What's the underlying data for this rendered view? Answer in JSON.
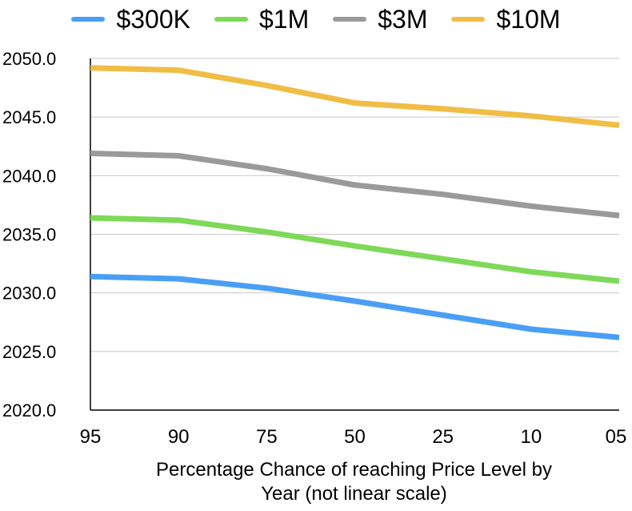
{
  "chart_data": {
    "type": "line",
    "title": "",
    "categories": [
      "95",
      "90",
      "75",
      "50",
      "25",
      "10",
      "05"
    ],
    "xlabel": [
      "Percentage Chance of reaching Price Level by",
      "Year (not linear scale)"
    ],
    "ylabel": "",
    "ylim": [
      2020,
      2050
    ],
    "yticks": [
      "2020.0",
      "2025.0",
      "2030.0",
      "2035.0",
      "2040.0",
      "2045.0",
      "2050.0"
    ],
    "grid": true,
    "legend_position": "top",
    "series": [
      {
        "name": "$300K",
        "color": "#4a9ff5",
        "values": [
          2031.4,
          2031.2,
          2030.4,
          2029.3,
          2028.1,
          2026.9,
          2026.2
        ]
      },
      {
        "name": "$1M",
        "color": "#7ed957",
        "values": [
          2036.4,
          2036.2,
          2035.2,
          2034.0,
          2032.9,
          2031.8,
          2031.0
        ]
      },
      {
        "name": "$3M",
        "color": "#9a9a9a",
        "values": [
          2041.9,
          2041.7,
          2040.6,
          2039.2,
          2038.4,
          2037.4,
          2036.6
        ]
      },
      {
        "name": "$10M",
        "color": "#f0bd45",
        "values": [
          2049.2,
          2049.0,
          2047.7,
          2046.2,
          2045.7,
          2045.1,
          2044.3
        ]
      }
    ]
  }
}
